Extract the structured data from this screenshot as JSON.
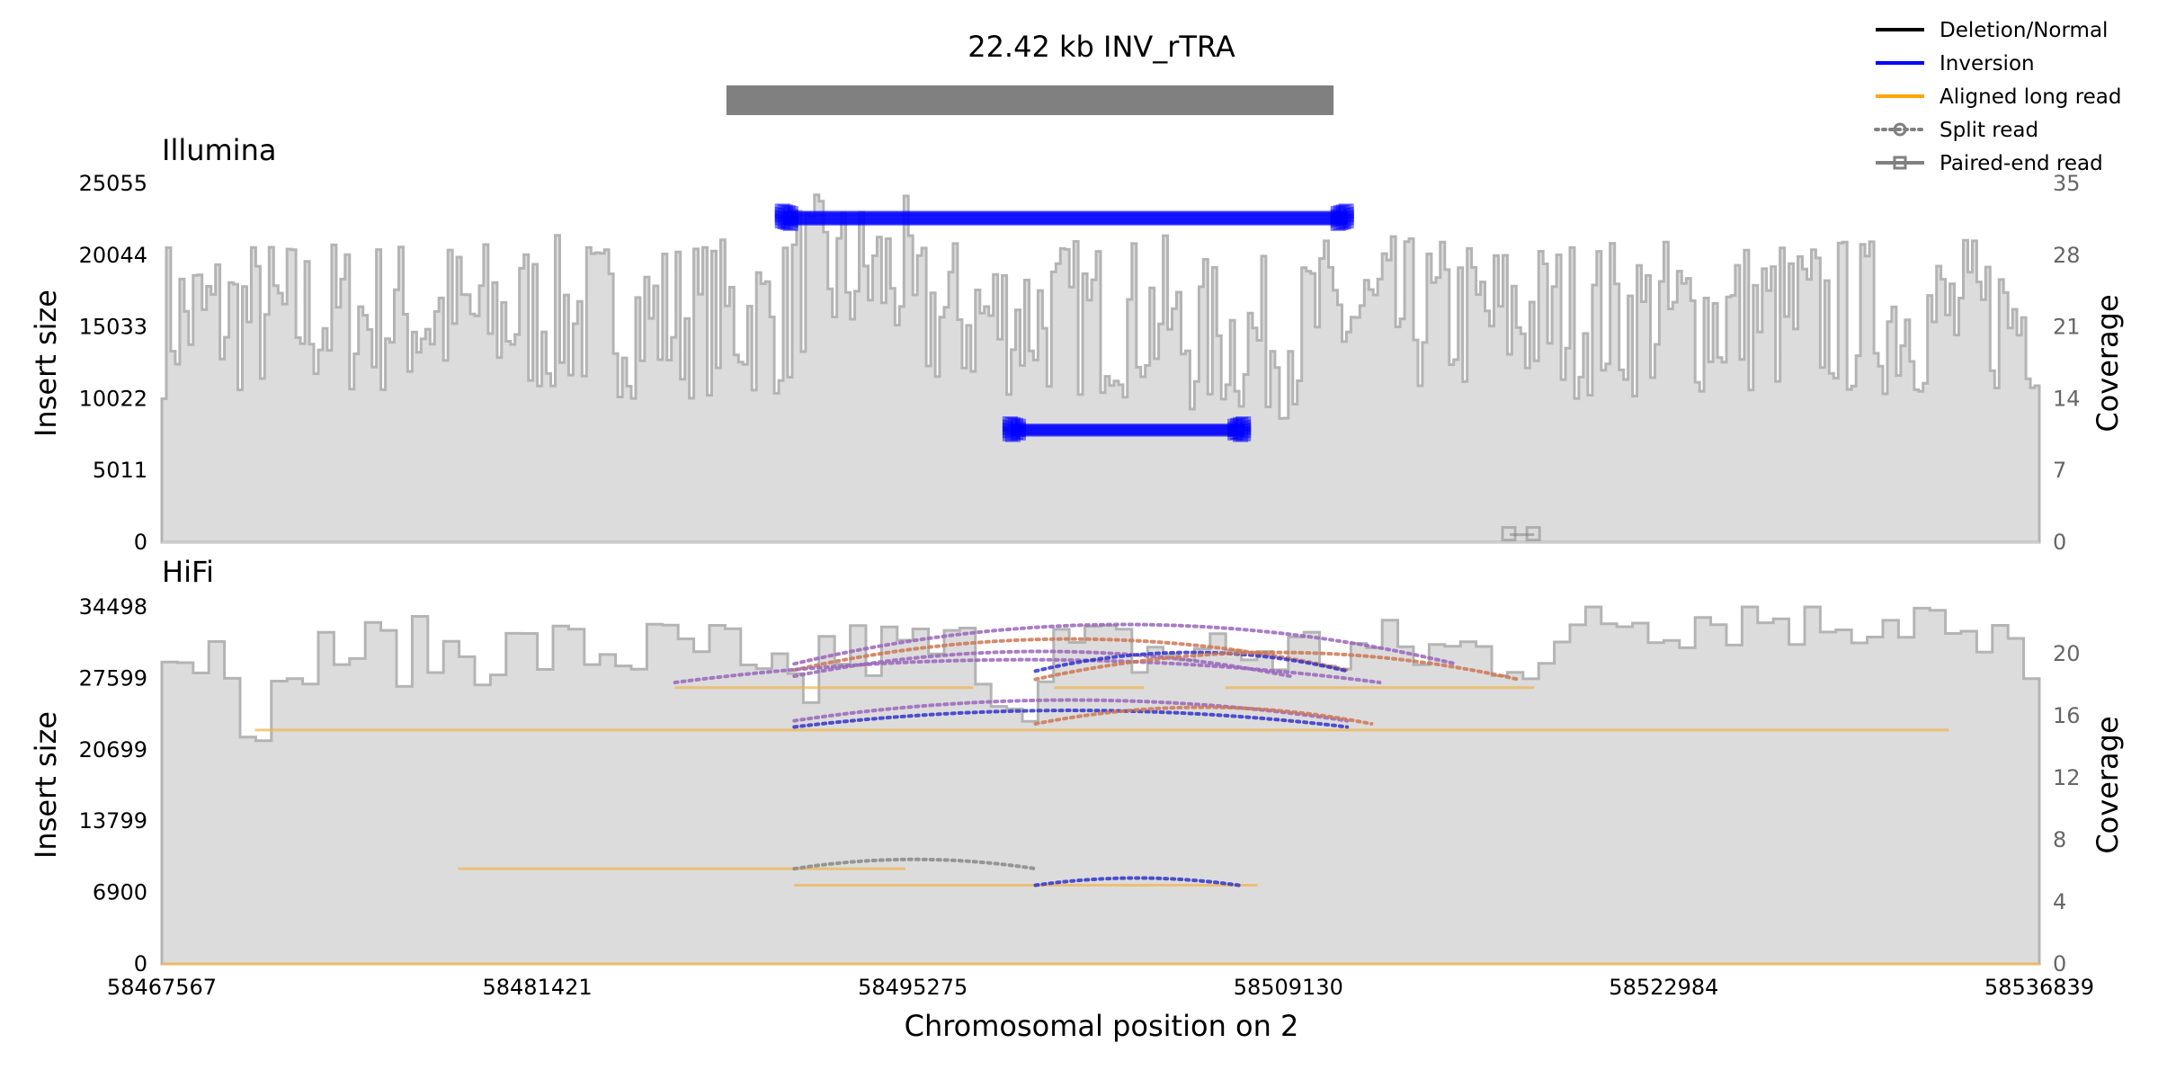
{
  "chart_data": [
    {
      "panel": "header",
      "type": "bar",
      "title": "22.42 kb INV_rTRA",
      "sv_interval": [
        58488400,
        58510800
      ],
      "colors": {
        "sv_bar": "#808080"
      }
    },
    {
      "panel": "Illumina",
      "type": "line",
      "title": "Illumina",
      "xlabel": "",
      "ylabel": "Insert size",
      "y2label": "Coverage",
      "xlim": [
        58467567,
        58536839
      ],
      "ylim": [
        0,
        25055
      ],
      "y2lim": [
        0,
        35
      ],
      "yticks": [
        0,
        5011,
        10022,
        15033,
        20044,
        25055
      ],
      "y2ticks": [
        0,
        7,
        14,
        21,
        28,
        35
      ],
      "coverage_color": "#dcdcdc",
      "coverage_line_color": "#b4b4b4",
      "series": [
        {
          "name": "Inversion",
          "kind": "paired-end read",
          "x": [
            58490500,
            58511300
          ],
          "y": [
            22600,
            22600
          ],
          "color": "#0000ff",
          "count": 24
        },
        {
          "name": "Inversion",
          "kind": "paired-end read",
          "x": [
            58498900,
            58507500
          ],
          "y": [
            7800,
            7800
          ],
          "color": "#0000ff",
          "count": 14
        },
        {
          "name": "Deletion/Normal",
          "kind": "paired-end read",
          "x": [
            58517300,
            58518200
          ],
          "y": [
            500,
            500
          ],
          "color": "#808080",
          "count": 1
        }
      ]
    },
    {
      "panel": "HiFi",
      "type": "line",
      "title": "HiFi",
      "xlabel": "Chromosomal position on 2",
      "ylabel": "Insert size",
      "y2label": "Coverage",
      "xlim": [
        58467567,
        58536839
      ],
      "xticks": [
        58467567,
        58481421,
        58495275,
        58509130,
        58522984,
        58536839
      ],
      "ylim": [
        0,
        34498
      ],
      "y2lim": [
        0,
        20
      ],
      "yticks": [
        0,
        6900,
        13799,
        20699,
        27599,
        34498
      ],
      "y2ticks": [
        0,
        4,
        8,
        12,
        16,
        20
      ],
      "coverage_color": "#dcdcdc",
      "coverage_line_color": "#b4b4b4",
      "long_reads": [
        {
          "x": [
            58471000,
            58533500
          ],
          "y": 22600
        },
        {
          "x": [
            58486500,
            58497500
          ],
          "y": 26700
        },
        {
          "x": [
            58500500,
            58503800
          ],
          "y": 26700
        },
        {
          "x": [
            58506800,
            58518200
          ],
          "y": 26700
        },
        {
          "x": [
            58478500,
            58495000
          ],
          "y": 9200
        },
        {
          "x": [
            58490900,
            58508000
          ],
          "y": 7600
        }
      ],
      "split_reads": [
        {
          "x": [
            58490900,
            58515300
          ],
          "y": 29000,
          "h": 3800,
          "color": "#9966bb"
        },
        {
          "x": [
            58490900,
            58511300
          ],
          "y": 28400,
          "h": 3000,
          "color": "#cc7755"
        },
        {
          "x": [
            58490900,
            58509200
          ],
          "y": 27800,
          "h": 2400,
          "color": "#9966bb"
        },
        {
          "x": [
            58486500,
            58512500
          ],
          "y": 27200,
          "h": 2200,
          "color": "#9966bb"
        },
        {
          "x": [
            58499800,
            58511300
          ],
          "y": 28300,
          "h": 1800,
          "color": "#3333cc"
        },
        {
          "x": [
            58499800,
            58517600
          ],
          "y": 27500,
          "h": 2600,
          "color": "#cc7755"
        },
        {
          "x": [
            58490900,
            58511300
          ],
          "y": 23500,
          "h": 2000,
          "color": "#9966bb"
        },
        {
          "x": [
            58490900,
            58511300
          ],
          "y": 22900,
          "h": 1600,
          "color": "#3333cc"
        },
        {
          "x": [
            58499800,
            58512200
          ],
          "y": 23200,
          "h": 1600,
          "color": "#cc7755"
        },
        {
          "x": [
            58490900,
            58499800
          ],
          "y": 9200,
          "h": 900,
          "color": "#888888"
        },
        {
          "x": [
            58499800,
            58507300
          ],
          "y": 7600,
          "h": 700,
          "color": "#3333cc"
        }
      ]
    }
  ],
  "legend": {
    "position": "top-right",
    "items": [
      {
        "label": "Deletion/Normal",
        "style": "line",
        "color": "#000000"
      },
      {
        "label": "Inversion",
        "style": "line",
        "color": "#0000ff"
      },
      {
        "label": "Aligned long read",
        "style": "line",
        "color": "#ffa500"
      },
      {
        "label": "Split read",
        "style": "dotted-circle",
        "color": "#808080"
      },
      {
        "label": "Paired-end read",
        "style": "square",
        "color": "#808080"
      }
    ]
  }
}
